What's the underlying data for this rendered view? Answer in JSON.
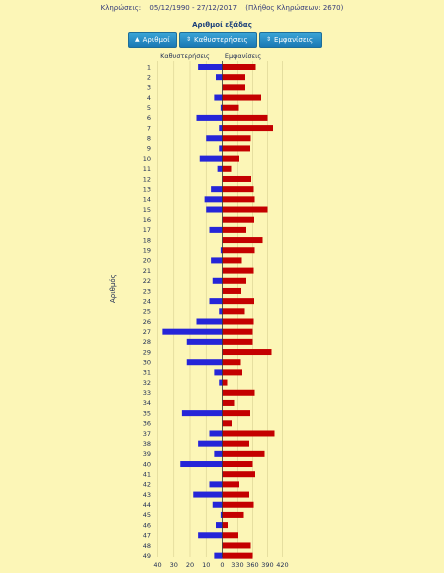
{
  "header": {
    "label": "Κληρώσεις:",
    "range": "05/12/1990 - 27/12/2017",
    "count": "(Πλήθος Κληρώσεων: 2670)"
  },
  "subtitle": "Αριθμοί εξάδας",
  "buttons": [
    {
      "label": "Αριθμοί",
      "icon": "caret-up-icon",
      "active": true
    },
    {
      "label": "Καθυστερήσεις",
      "icon": "sort-icon"
    },
    {
      "label": "Εμφανίσεις",
      "icon": "sort-icon"
    }
  ],
  "colors": {
    "delay": "#2525d8",
    "appear": "#c40000",
    "background": "#fcf6b7",
    "grid": "#d8d090",
    "center": "#333333"
  },
  "chart_data": {
    "type": "bar",
    "orientation": "horizontal-butterfly",
    "ylabel": "Αριθμός",
    "left_header": "Καθυστερήσεις",
    "right_header": "Εμφανίσεις",
    "left_ticks": [
      "40",
      "30",
      "20",
      "10",
      "0"
    ],
    "right_ticks": [
      "330",
      "360",
      "390",
      "420"
    ],
    "left_range": [
      0,
      40
    ],
    "right_range": [
      300,
      430
    ],
    "categories": [
      "1",
      "2",
      "3",
      "4",
      "5",
      "6",
      "7",
      "8",
      "9",
      "10",
      "11",
      "12",
      "13",
      "14",
      "15",
      "16",
      "17",
      "18",
      "19",
      "20",
      "21",
      "22",
      "23",
      "24",
      "25",
      "26",
      "27",
      "28",
      "29",
      "30",
      "31",
      "32",
      "33",
      "34",
      "35",
      "36",
      "37",
      "38",
      "39",
      "40",
      "41",
      "42",
      "43",
      "44",
      "45",
      "46",
      "47",
      "48",
      "49"
    ],
    "series": [
      {
        "name": "Καθυστερήσεις",
        "values": [
          15,
          4,
          0,
          5,
          1,
          16,
          2,
          10,
          2,
          14,
          3,
          0,
          7,
          11,
          10,
          0,
          8,
          0,
          1,
          7,
          0,
          6,
          0,
          8,
          2,
          16,
          37,
          22,
          0,
          22,
          5,
          2,
          0,
          0,
          25,
          0,
          8,
          15,
          5,
          26,
          0,
          8,
          18,
          6,
          1,
          4,
          15,
          0,
          5
        ]
      },
      {
        "name": "Εμφανίσεις",
        "values": [
          366,
          345,
          345,
          377,
          332,
          390,
          401,
          356,
          355,
          333,
          318,
          357,
          362,
          364,
          390,
          363,
          347,
          380,
          364,
          338,
          362,
          347,
          337,
          363,
          344,
          362,
          360,
          360,
          398,
          336,
          339,
          310,
          364,
          324,
          355,
          319,
          404,
          353,
          384,
          360,
          365,
          333,
          353,
          362,
          342,
          311,
          331,
          356,
          360
        ]
      }
    ]
  }
}
